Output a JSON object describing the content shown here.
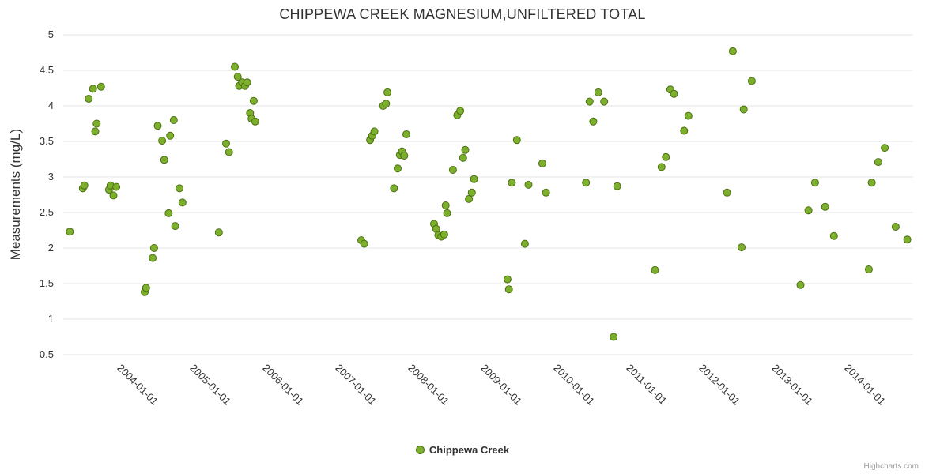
{
  "credits": "Highcharts.com",
  "colors": {
    "point_fill": "#7cb02c",
    "point_stroke": "#4c6f12",
    "grid": "#e6e6e6",
    "title": "#333333",
    "tick_label": "#333333",
    "credits": "#999999",
    "background": "#ffffff"
  },
  "chart_data": {
    "type": "scatter",
    "title": "CHIPPEWA CREEK MAGNESIUM,UNFILTERED TOTAL",
    "xlabel": "",
    "ylabel": "Measurements (mg/L)",
    "ylim": [
      0.5,
      5
    ],
    "yticks": [
      0.5,
      1,
      1.5,
      2,
      2.5,
      3,
      3.5,
      4,
      4.5,
      5
    ],
    "xlim": [
      2003.13,
      2014.82
    ],
    "xticks": [
      {
        "value": 2004,
        "label": "2004-01-01"
      },
      {
        "value": 2005,
        "label": "2005-01-01"
      },
      {
        "value": 2006,
        "label": "2006-01-01"
      },
      {
        "value": 2007,
        "label": "2007-01-01"
      },
      {
        "value": 2008,
        "label": "2008-01-01"
      },
      {
        "value": 2009,
        "label": "2009-01-01"
      },
      {
        "value": 2010,
        "label": "2010-01-01"
      },
      {
        "value": 2011,
        "label": "2011-01-01"
      },
      {
        "value": 2012,
        "label": "2012-01-01"
      },
      {
        "value": 2013,
        "label": "2013-01-01"
      },
      {
        "value": 2014,
        "label": "2014-01-01"
      }
    ],
    "grid": true,
    "legend_position": "bottom-center",
    "series": [
      {
        "name": "Chippewa Creek",
        "color": "#7cb02c",
        "points": [
          [
            2003.22,
            2.23
          ],
          [
            2003.4,
            2.84
          ],
          [
            2003.42,
            2.88
          ],
          [
            2003.48,
            4.1
          ],
          [
            2003.54,
            4.24
          ],
          [
            2003.57,
            3.64
          ],
          [
            2003.59,
            3.75
          ],
          [
            2003.65,
            4.27
          ],
          [
            2003.76,
            2.82
          ],
          [
            2003.78,
            2.88
          ],
          [
            2003.82,
            2.74
          ],
          [
            2003.86,
            2.86
          ],
          [
            2004.25,
            1.38
          ],
          [
            2004.27,
            1.44
          ],
          [
            2004.36,
            1.86
          ],
          [
            2004.38,
            2.0
          ],
          [
            2004.43,
            3.72
          ],
          [
            2004.49,
            3.51
          ],
          [
            2004.52,
            3.24
          ],
          [
            2004.58,
            2.49
          ],
          [
            2004.6,
            3.58
          ],
          [
            2004.65,
            3.8
          ],
          [
            2004.67,
            2.31
          ],
          [
            2004.73,
            2.84
          ],
          [
            2004.77,
            2.64
          ],
          [
            2005.27,
            2.22
          ],
          [
            2005.37,
            3.47
          ],
          [
            2005.41,
            3.35
          ],
          [
            2005.49,
            4.55
          ],
          [
            2005.53,
            4.41
          ],
          [
            2005.55,
            4.28
          ],
          [
            2005.59,
            4.33
          ],
          [
            2005.63,
            4.28
          ],
          [
            2005.66,
            4.33
          ],
          [
            2005.7,
            3.9
          ],
          [
            2005.72,
            3.82
          ],
          [
            2005.75,
            4.07
          ],
          [
            2005.77,
            3.78
          ],
          [
            2007.23,
            2.11
          ],
          [
            2007.27,
            2.06
          ],
          [
            2007.35,
            3.52
          ],
          [
            2007.38,
            3.58
          ],
          [
            2007.41,
            3.64
          ],
          [
            2007.53,
            4.0
          ],
          [
            2007.57,
            4.03
          ],
          [
            2007.59,
            4.19
          ],
          [
            2007.68,
            2.84
          ],
          [
            2007.73,
            3.12
          ],
          [
            2007.76,
            3.31
          ],
          [
            2007.79,
            3.36
          ],
          [
            2007.82,
            3.3
          ],
          [
            2007.85,
            3.6
          ],
          [
            2008.23,
            2.34
          ],
          [
            2008.26,
            2.27
          ],
          [
            2008.29,
            2.18
          ],
          [
            2008.33,
            2.16
          ],
          [
            2008.37,
            2.19
          ],
          [
            2008.39,
            2.6
          ],
          [
            2008.41,
            2.49
          ],
          [
            2008.49,
            3.1
          ],
          [
            2008.55,
            3.87
          ],
          [
            2008.59,
            3.93
          ],
          [
            2008.63,
            3.27
          ],
          [
            2008.66,
            3.38
          ],
          [
            2008.71,
            2.69
          ],
          [
            2008.75,
            2.78
          ],
          [
            2008.78,
            2.97
          ],
          [
            2009.24,
            1.56
          ],
          [
            2009.26,
            1.42
          ],
          [
            2009.3,
            2.92
          ],
          [
            2009.37,
            3.52
          ],
          [
            2009.48,
            2.06
          ],
          [
            2009.53,
            2.89
          ],
          [
            2009.72,
            3.19
          ],
          [
            2009.77,
            2.78
          ],
          [
            2010.32,
            2.92
          ],
          [
            2010.37,
            4.06
          ],
          [
            2010.42,
            3.78
          ],
          [
            2010.49,
            4.19
          ],
          [
            2010.57,
            4.06
          ],
          [
            2010.7,
            0.75
          ],
          [
            2010.75,
            2.87
          ],
          [
            2011.27,
            1.69
          ],
          [
            2011.36,
            3.14
          ],
          [
            2011.42,
            3.28
          ],
          [
            2011.48,
            4.23
          ],
          [
            2011.53,
            4.17
          ],
          [
            2011.67,
            3.65
          ],
          [
            2011.73,
            3.86
          ],
          [
            2012.26,
            2.78
          ],
          [
            2012.34,
            4.77
          ],
          [
            2012.46,
            2.01
          ],
          [
            2012.49,
            3.95
          ],
          [
            2012.6,
            4.35
          ],
          [
            2013.27,
            1.48
          ],
          [
            2013.38,
            2.53
          ],
          [
            2013.47,
            2.92
          ],
          [
            2013.61,
            2.58
          ],
          [
            2013.73,
            2.17
          ],
          [
            2014.21,
            1.7
          ],
          [
            2014.25,
            2.92
          ],
          [
            2014.34,
            3.21
          ],
          [
            2014.43,
            3.41
          ],
          [
            2014.58,
            2.3
          ],
          [
            2014.74,
            2.12
          ]
        ]
      }
    ]
  }
}
